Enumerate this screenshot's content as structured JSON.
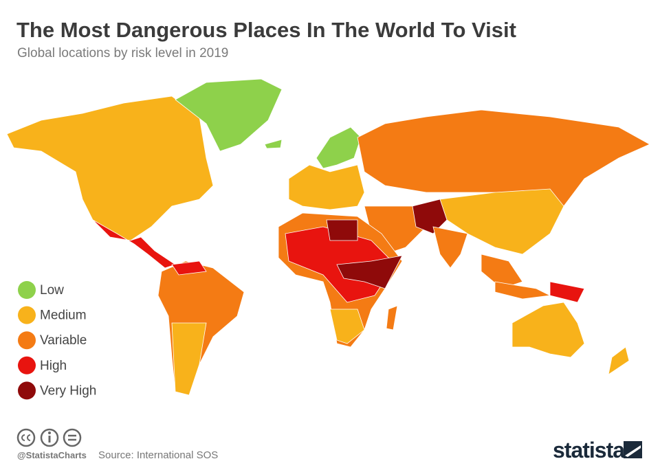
{
  "header": {
    "title": "The Most Dangerous Places In The World To Visit",
    "subtitle": "Global locations by risk level in 2019"
  },
  "legend": {
    "items": [
      {
        "label": "Low",
        "color": "#8ed14b"
      },
      {
        "label": "Medium",
        "color": "#f8b21b"
      },
      {
        "label": "Variable",
        "color": "#f47b14"
      },
      {
        "label": "High",
        "color": "#e8140f"
      },
      {
        "label": "Very High",
        "color": "#8f0a0a"
      }
    ]
  },
  "footer": {
    "handle": "@StatistaCharts",
    "source": "Source: International SOS",
    "brand": "statista"
  }
}
